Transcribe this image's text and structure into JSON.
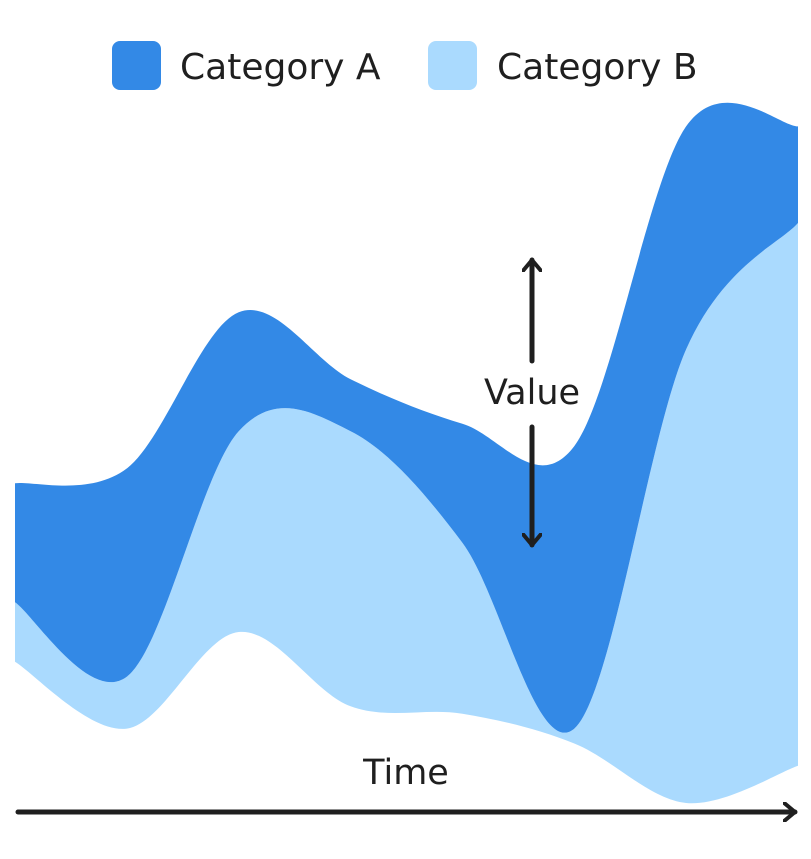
{
  "chart_data": {
    "type": "area",
    "title": "",
    "xlabel": "Time",
    "ylabel": "",
    "annotation": "Value",
    "x": [
      0,
      1,
      2,
      3,
      4,
      5,
      6,
      7
    ],
    "baseline": [
      -2.4,
      -3.3,
      -2.0,
      -3.0,
      -3.1,
      -3.5,
      -4.3,
      -3.8
    ],
    "series": [
      {
        "name": "Category B",
        "color": "#aadafe",
        "values": [
          0.8,
          0.7,
          2.7,
          3.7,
          2.3,
          0.2,
          6.1,
          7.3
        ]
      },
      {
        "name": "Category A",
        "color": "#3389e6",
        "values": [
          1.6,
          2.8,
          1.6,
          0.7,
          1.6,
          3.8,
          3.0,
          1.3
        ]
      }
    ],
    "legend": {
      "position": "top",
      "items": [
        "Category A",
        "Category B"
      ]
    },
    "ylim": [
      -5,
      6.5
    ],
    "xlim": [
      0,
      7
    ],
    "grid": false,
    "axes": "arrows-only"
  }
}
